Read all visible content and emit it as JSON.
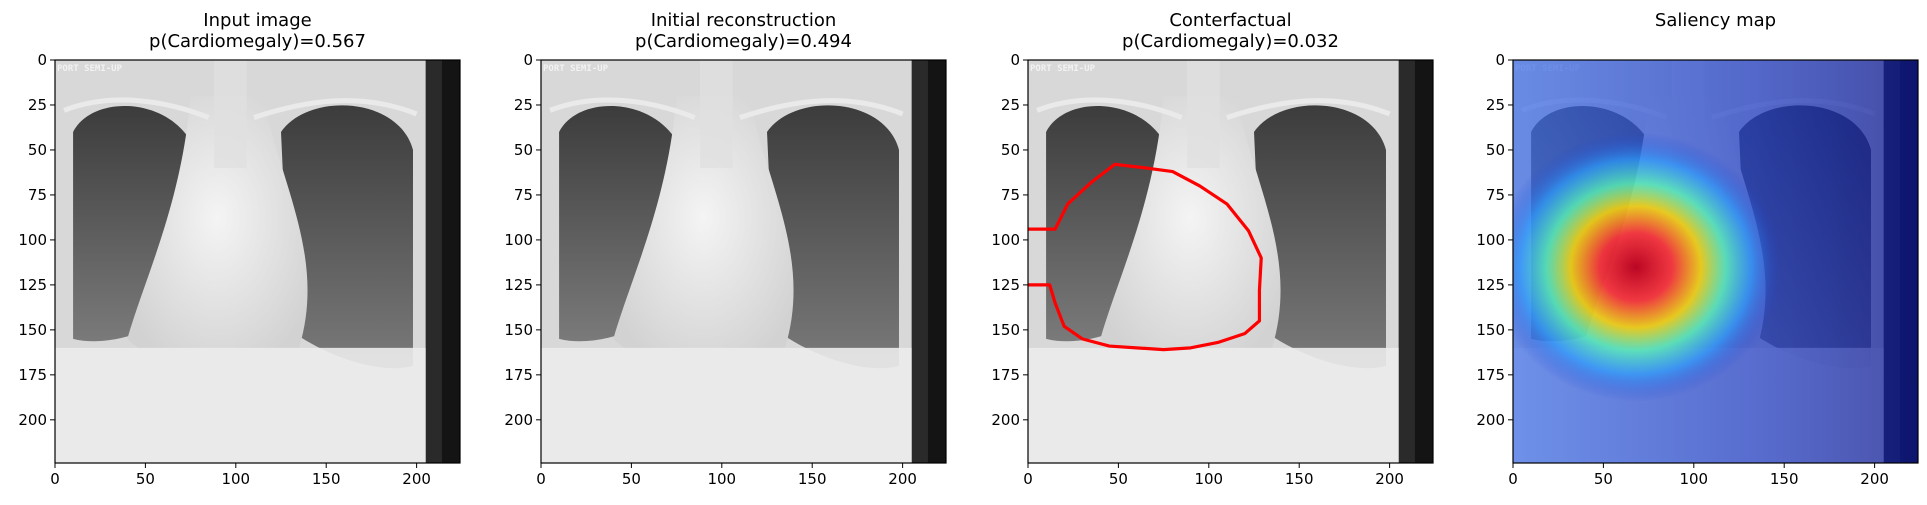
{
  "chart_data": [
    {
      "type": "image",
      "title": "Input image\np(Cardiomegaly)=0.567",
      "image_kind": "chest x-ray (grayscale)",
      "burned_in_text": "PORT SEMI-UP",
      "x_ticks": [
        0,
        50,
        100,
        150,
        200
      ],
      "y_ticks": [
        0,
        25,
        50,
        75,
        100,
        125,
        150,
        175,
        200
      ],
      "xlim": [
        0,
        224
      ],
      "ylim": [
        224,
        0
      ],
      "grid": false
    },
    {
      "type": "image",
      "title": "Initial reconstruction\np(Cardiomegaly)=0.494",
      "image_kind": "chest x-ray (grayscale)",
      "burned_in_text": "PORT SEMI-UP",
      "x_ticks": [
        0,
        50,
        100,
        150,
        200
      ],
      "y_ticks": [
        0,
        25,
        50,
        75,
        100,
        125,
        150,
        175,
        200
      ],
      "xlim": [
        0,
        224
      ],
      "ylim": [
        224,
        0
      ],
      "grid": false
    },
    {
      "type": "image",
      "title": "Conterfactual\np(Cardiomegaly)=0.032",
      "image_kind": "chest x-ray (grayscale) with contour",
      "burned_in_text": "PORT SEMI-UP",
      "contour_color": "#ff0000",
      "contour": [
        [
          0,
          94
        ],
        [
          15,
          94
        ],
        [
          22,
          80
        ],
        [
          35,
          68
        ],
        [
          48,
          58
        ],
        [
          65,
          60
        ],
        [
          80,
          62
        ],
        [
          95,
          70
        ],
        [
          110,
          80
        ],
        [
          122,
          95
        ],
        [
          129,
          110
        ],
        [
          128,
          128
        ],
        [
          128,
          145
        ],
        [
          120,
          152
        ],
        [
          105,
          157
        ],
        [
          90,
          160
        ],
        [
          75,
          161
        ],
        [
          60,
          160
        ],
        [
          45,
          159
        ],
        [
          30,
          155
        ],
        [
          20,
          148
        ],
        [
          15,
          135
        ],
        [
          12,
          125
        ],
        [
          0,
          125
        ]
      ],
      "x_ticks": [
        0,
        50,
        100,
        150,
        200
      ],
      "y_ticks": [
        0,
        25,
        50,
        75,
        100,
        125,
        150,
        175,
        200
      ],
      "xlim": [
        0,
        224
      ],
      "ylim": [
        224,
        0
      ],
      "grid": false
    },
    {
      "type": "heatmap",
      "title": "Saliency map",
      "image_kind": "chest x-ray with jet saliency overlay",
      "burned_in_text": "PORT SEMI-UP",
      "hotspot_center": [
        68,
        115
      ],
      "colormap": "jet",
      "x_ticks": [
        0,
        50,
        100,
        150,
        200
      ],
      "y_ticks": [
        0,
        25,
        50,
        75,
        100,
        125,
        150,
        175,
        200
      ],
      "xlim": [
        0,
        224
      ],
      "ylim": [
        224,
        0
      ],
      "grid": false
    }
  ]
}
